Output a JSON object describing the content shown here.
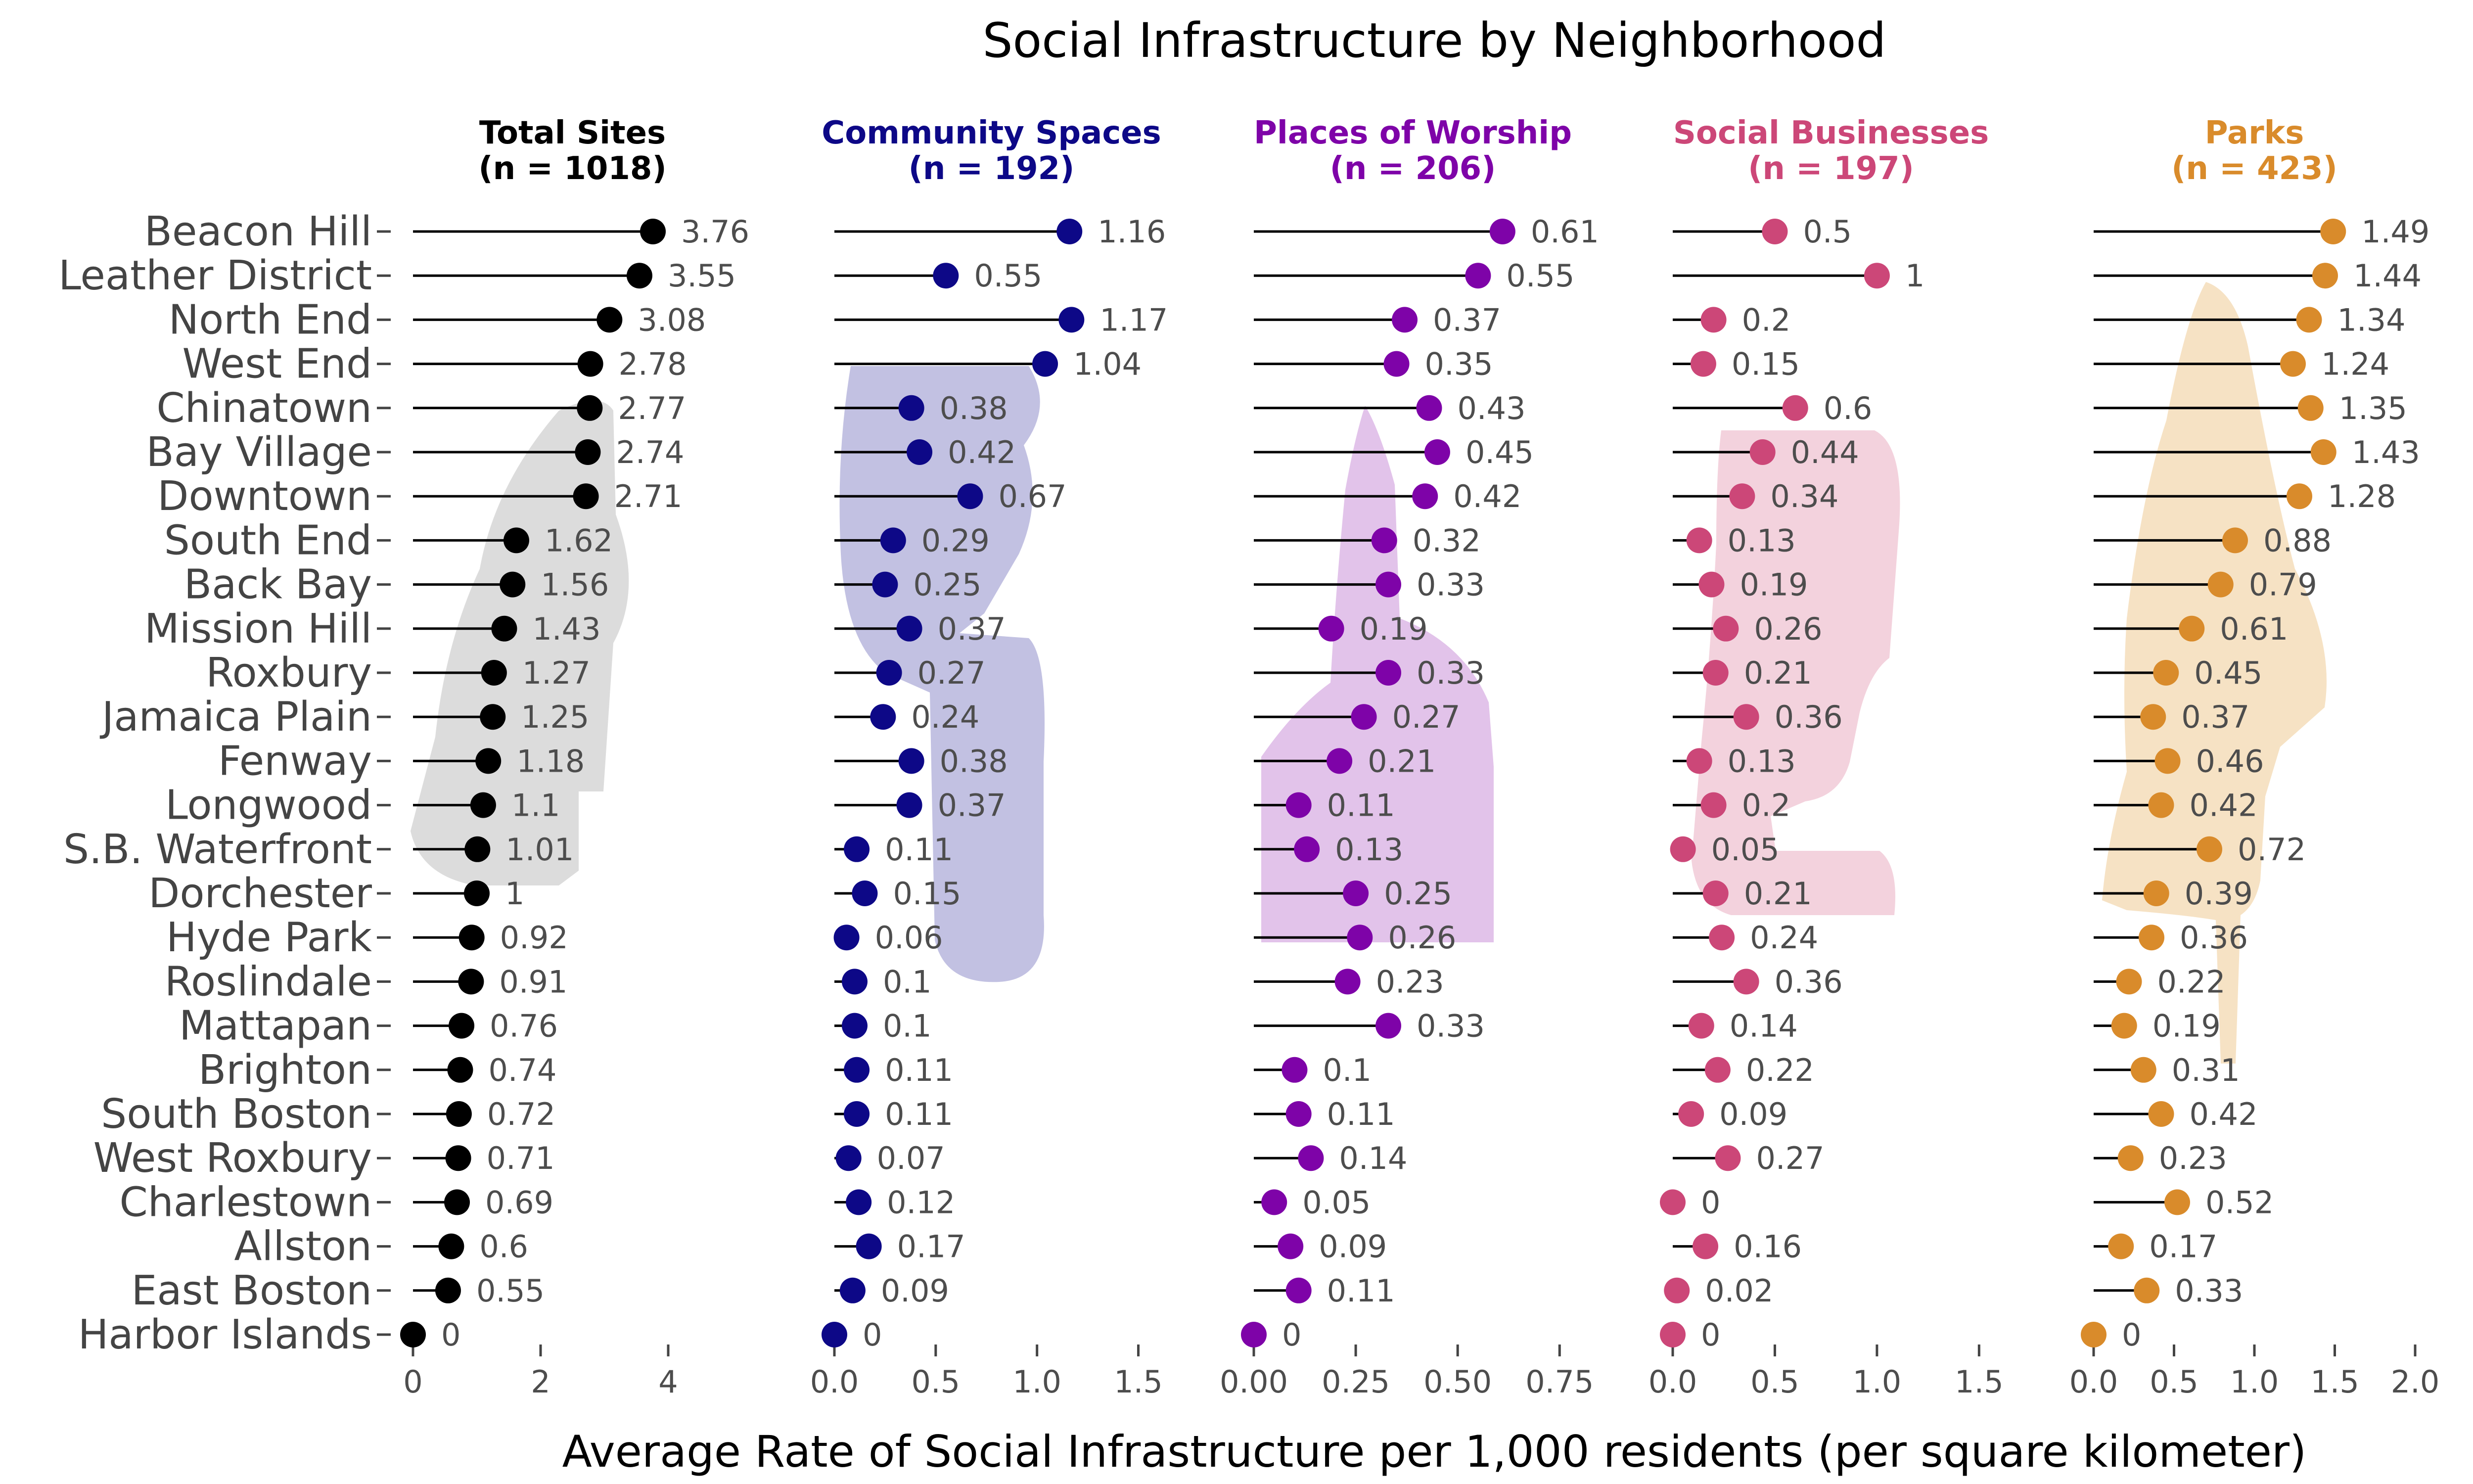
{
  "chart_data": {
    "type": "lollipop",
    "title": "Social Infrastructure by Neighborhood",
    "xlabel": "Average Rate of Social Infrastructure per 1,000 residents (per square kilometer)",
    "categories": [
      "Beacon Hill",
      "Leather District",
      "North End",
      "West End",
      "Chinatown",
      "Bay Village",
      "Downtown",
      "South End",
      "Back Bay",
      "Mission Hill",
      "Roxbury",
      "Jamaica Plain",
      "Fenway",
      "Longwood",
      "S.B. Waterfront",
      "Dorchester",
      "Hyde Park",
      "Roslindale",
      "Mattapan",
      "Brighton",
      "South Boston",
      "West Roxbury",
      "Charlestown",
      "Allston",
      "East Boston",
      "Harbor Islands"
    ],
    "panels": [
      {
        "name": "Total Sites",
        "n_label": "(n = 1018)",
        "color": "#000000",
        "shape_color": "#dcdcdc",
        "xlim": [
          0,
          5
        ],
        "ticks": [
          0,
          2,
          4
        ],
        "tick_labels": [
          "0",
          "2",
          "4"
        ],
        "values": [
          3.76,
          3.55,
          3.08,
          2.78,
          2.77,
          2.74,
          2.71,
          1.62,
          1.56,
          1.43,
          1.27,
          1.25,
          1.18,
          1.1,
          1.01,
          1,
          0.92,
          0.91,
          0.76,
          0.74,
          0.72,
          0.71,
          0.69,
          0.6,
          0.55,
          0
        ],
        "value_labels": [
          "3.76",
          "3.55",
          "3.08",
          "2.78",
          "2.77",
          "2.74",
          "2.71",
          "1.62",
          "1.56",
          "1.43",
          "1.27",
          "1.25",
          "1.18",
          "1.1",
          "1.01",
          "1",
          "0.92",
          "0.91",
          "0.76",
          "0.74",
          "0.72",
          "0.71",
          "0.69",
          "0.6",
          "0.55",
          "0"
        ]
      },
      {
        "name": "Community Spaces",
        "n_label": "(n = 192)",
        "color": "#0d0887",
        "shape_color": "#c2c1e2",
        "xlim": [
          0,
          1.55
        ],
        "ticks": [
          0,
          0.5,
          1.0,
          1.5
        ],
        "tick_labels": [
          "0.0",
          "0.5",
          "1.0",
          "1.5"
        ],
        "values": [
          1.16,
          0.55,
          1.17,
          1.04,
          0.38,
          0.42,
          0.67,
          0.29,
          0.25,
          0.37,
          0.27,
          0.24,
          0.38,
          0.37,
          0.11,
          0.15,
          0.06,
          0.1,
          0.1,
          0.11,
          0.11,
          0.07,
          0.12,
          0.17,
          0.09,
          0
        ],
        "value_labels": [
          "1.16",
          "0.55",
          "1.17",
          "1.04",
          "0.38",
          "0.42",
          "0.67",
          "0.29",
          "0.25",
          "0.37",
          "0.27",
          "0.24",
          "0.38",
          "0.37",
          "0.11",
          "0.15",
          "0.06",
          "0.1",
          "0.1",
          "0.11",
          "0.11",
          "0.07",
          "0.12",
          "0.17",
          "0.09",
          "0"
        ]
      },
      {
        "name": "Places of Worship",
        "n_label": "(n = 206)",
        "color": "#7e03a8",
        "shape_color": "#e2c3ea",
        "xlim": [
          0,
          0.78
        ],
        "ticks": [
          0,
          0.25,
          0.5,
          0.75
        ],
        "tick_labels": [
          "0.00",
          "0.25",
          "0.50",
          "0.75"
        ],
        "values": [
          0.61,
          0.55,
          0.37,
          0.35,
          0.43,
          0.45,
          0.42,
          0.32,
          0.33,
          0.19,
          0.33,
          0.27,
          0.21,
          0.11,
          0.13,
          0.25,
          0.26,
          0.23,
          0.33,
          0.1,
          0.11,
          0.14,
          0.05,
          0.09,
          0.11,
          0
        ],
        "value_labels": [
          "0.61",
          "0.55",
          "0.37",
          "0.35",
          "0.43",
          "0.45",
          "0.42",
          "0.32",
          "0.33",
          "0.19",
          "0.33",
          "0.27",
          "0.21",
          "0.11",
          "0.13",
          "0.25",
          "0.26",
          "0.23",
          "0.33",
          "0.1",
          "0.11",
          "0.14",
          "0.05",
          "0.09",
          "0.11",
          "0"
        ]
      },
      {
        "name": "Social Businesses",
        "n_label": "(n = 197)",
        "color": "#cc4778",
        "shape_color": "#f3d2dd",
        "xlim": [
          0,
          1.55
        ],
        "ticks": [
          0,
          0.5,
          1.0,
          1.5
        ],
        "tick_labels": [
          "0.0",
          "0.5",
          "1.0",
          "1.5"
        ],
        "values": [
          0.5,
          1,
          0.2,
          0.15,
          0.6,
          0.44,
          0.34,
          0.13,
          0.19,
          0.26,
          0.21,
          0.36,
          0.13,
          0.2,
          0.05,
          0.21,
          0.24,
          0.36,
          0.14,
          0.22,
          0.09,
          0.27,
          0,
          0.16,
          0.02,
          0
        ],
        "value_labels": [
          "0.5",
          "1",
          "0.2",
          "0.15",
          "0.6",
          "0.44",
          "0.34",
          "0.13",
          "0.19",
          "0.26",
          "0.21",
          "0.36",
          "0.13",
          "0.2",
          "0.05",
          "0.21",
          "0.24",
          "0.36",
          "0.14",
          "0.22",
          "0.09",
          "0.27",
          "0",
          "0.16",
          "0.02",
          "0"
        ]
      },
      {
        "name": "Parks",
        "n_label": "(n = 423)",
        "color": "#d98b2b",
        "shape_color": "#f6e2c4",
        "xlim": [
          0,
          2.0
        ],
        "ticks": [
          0,
          0.5,
          1.0,
          1.5,
          2.0
        ],
        "tick_labels": [
          "0.0",
          "0.5",
          "1.0",
          "1.5",
          "2.0"
        ],
        "values": [
          1.49,
          1.44,
          1.34,
          1.24,
          1.35,
          1.43,
          1.28,
          0.88,
          0.79,
          0.61,
          0.45,
          0.37,
          0.46,
          0.42,
          0.72,
          0.39,
          0.36,
          0.22,
          0.19,
          0.31,
          0.42,
          0.23,
          0.52,
          0.17,
          0.33,
          0
        ],
        "value_labels": [
          "1.49",
          "1.44",
          "1.34",
          "1.24",
          "1.35",
          "1.43",
          "1.28",
          "0.88",
          "0.79",
          "0.61",
          "0.45",
          "0.37",
          "0.46",
          "0.42",
          "0.72",
          "0.39",
          "0.36",
          "0.22",
          "0.19",
          "0.31",
          "0.42",
          "0.23",
          "0.52",
          "0.17",
          "0.33",
          "0"
        ]
      }
    ]
  }
}
